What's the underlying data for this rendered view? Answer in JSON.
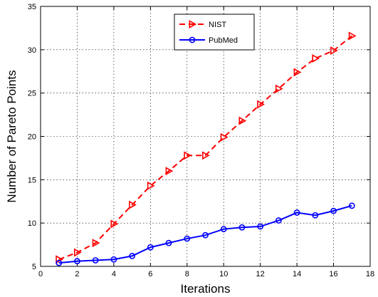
{
  "chart_data": {
    "type": "line",
    "xlabel": "Iterations",
    "ylabel": "Number of Pareto Points",
    "xlim": [
      0,
      18
    ],
    "ylim": [
      5,
      35
    ],
    "xticks": [
      0,
      2,
      4,
      6,
      8,
      10,
      12,
      14,
      16,
      18
    ],
    "yticks": [
      5,
      10,
      15,
      20,
      25,
      30,
      35
    ],
    "grid": true,
    "legend_position": "top-center",
    "x": [
      1,
      2,
      3,
      4,
      5,
      6,
      7,
      8,
      9,
      10,
      11,
      12,
      13,
      14,
      15,
      16,
      17
    ],
    "series": [
      {
        "name": "NIST",
        "color": "#ff0000",
        "line_style": "dashed",
        "marker": "right-triangle",
        "values": [
          5.8,
          6.6,
          7.7,
          9.9,
          12.1,
          14.3,
          16.0,
          17.8,
          17.8,
          19.9,
          21.8,
          23.7,
          25.5,
          27.4,
          29.0,
          29.9,
          31.6
        ]
      },
      {
        "name": "PubMed",
        "color": "#0000ff",
        "line_style": "solid",
        "marker": "circle",
        "values": [
          5.4,
          5.6,
          5.7,
          5.8,
          6.2,
          7.2,
          7.7,
          8.2,
          8.6,
          9.3,
          9.5,
          9.6,
          10.3,
          11.2,
          10.9,
          11.4,
          12.0
        ]
      }
    ]
  }
}
